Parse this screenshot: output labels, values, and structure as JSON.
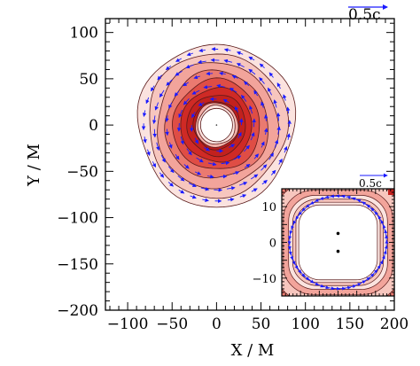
{
  "chart_data": [
    {
      "type": "contour",
      "panel": "main",
      "xlabel": "X / M",
      "ylabel": "Y / M",
      "xlim": [
        -125,
        200
      ],
      "ylim": [
        -200,
        115
      ],
      "x_ticks": [
        -100,
        -50,
        0,
        50,
        100,
        150,
        200
      ],
      "x_tick_labels": [
        "−100",
        "−50",
        "0",
        "50",
        "100",
        "150",
        "200"
      ],
      "y_ticks": [
        100,
        50,
        0,
        -50,
        -100,
        -150,
        -200
      ],
      "y_tick_labels": [
        "100",
        "50",
        "0",
        "−50",
        "−100",
        "−150",
        "−200"
      ],
      "velocity_scale_label": "0.5c",
      "torus": {
        "center": [
          0,
          0
        ],
        "inner_radius": 18,
        "outer_radius": 88
      },
      "contour_levels": [
        {
          "r": 88,
          "color": "#fbe3df"
        },
        {
          "r": 78,
          "color": "#f7c6be"
        },
        {
          "r": 68,
          "color": "#f2a49b"
        },
        {
          "r": 58,
          "color": "#ea7a70"
        },
        {
          "r": 49,
          "color": "#df4d45"
        },
        {
          "r": 40,
          "color": "#cf2a25"
        },
        {
          "r": 33,
          "color": "#c2211e"
        },
        {
          "r": 26,
          "color": "#b91c1c"
        }
      ],
      "flow": "counter-clockwise"
    },
    {
      "type": "contour",
      "panel": "inset",
      "xlim": [
        -15,
        15
      ],
      "ylim": [
        -15,
        15
      ],
      "x_ticks": [],
      "y_ticks": [
        10,
        0,
        -10
      ],
      "y_tick_labels": [
        "10",
        "0",
        "−10"
      ],
      "velocity_scale_label": "0.5c",
      "black_holes": [
        {
          "x": 0,
          "y": 2.5
        },
        {
          "x": 0,
          "y": -2.5
        }
      ]
    }
  ]
}
